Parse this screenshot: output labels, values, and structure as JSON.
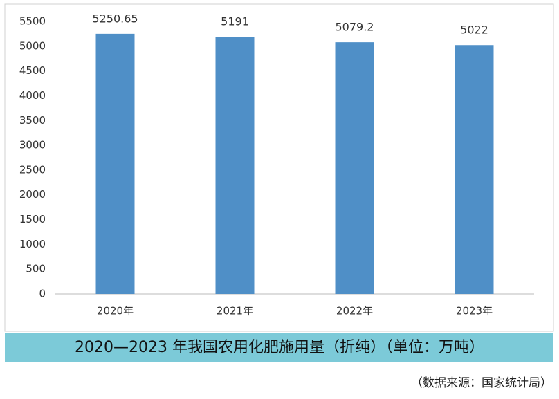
{
  "chart_data": {
    "type": "bar",
    "title": "2020—2023 年我国农用化肥施用量（折纯）（单位：万吨）",
    "source": "（数据来源：国家统计局）",
    "categories": [
      "2020年",
      "2021年",
      "2022年",
      "2023年"
    ],
    "values": [
      5250.65,
      5191,
      5079.2,
      5022
    ],
    "color": "#4f8fc7",
    "ylim": [
      0,
      5500
    ],
    "yticks": [
      0,
      500,
      1000,
      1500,
      2000,
      2500,
      3000,
      3500,
      4000,
      4500,
      5000,
      5500
    ],
    "grid": false
  }
}
